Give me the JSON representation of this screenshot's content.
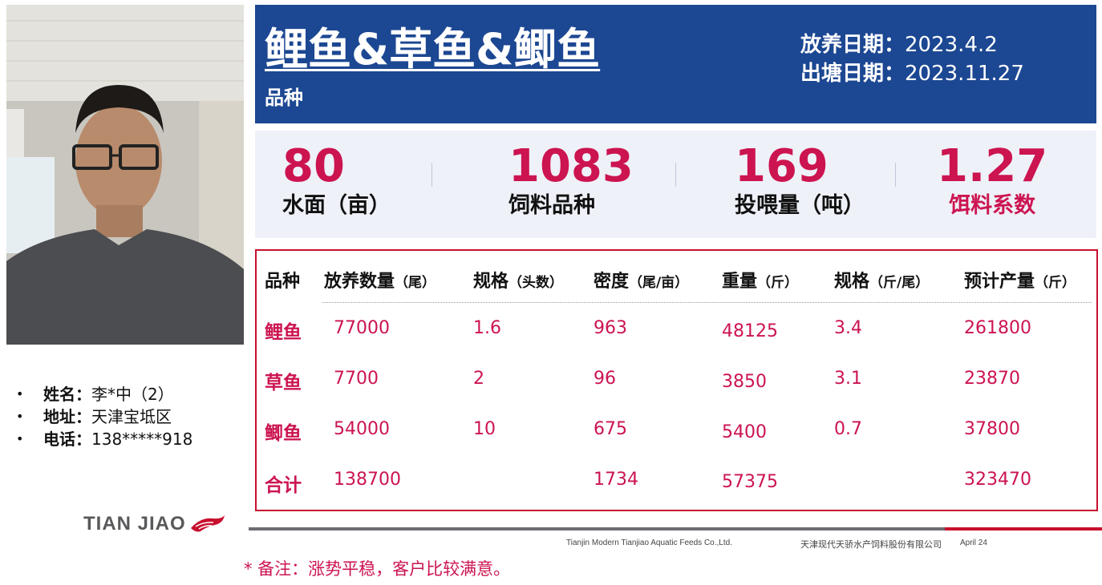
{
  "header": {
    "title": "鲤鱼&草鱼&鲫鱼",
    "subtitle": "品种",
    "release_date_label": "放养日期：",
    "release_date": "2023.4.2",
    "harvest_date_label": "出塘日期：",
    "harvest_date": "2023.11.27"
  },
  "stats": [
    {
      "value": "80",
      "label": "水面（亩）"
    },
    {
      "value": "1083",
      "label": "饲料品种"
    },
    {
      "value": "169",
      "label": "投喂量（吨）"
    },
    {
      "value": "1.27",
      "label": "饵料系数"
    }
  ],
  "table": {
    "headers": [
      {
        "main": "品种",
        "unit": ""
      },
      {
        "main": "放养数量",
        "unit": "（尾）"
      },
      {
        "main": "规格",
        "unit": "（头数）"
      },
      {
        "main": "密度",
        "unit": "（尾/亩）"
      },
      {
        "main": "重量",
        "unit": "（斤）"
      },
      {
        "main": "规格",
        "unit": "（斤/尾）"
      },
      {
        "main": "预计产量",
        "unit": "（斤）"
      }
    ],
    "rows": [
      {
        "name": "鲤鱼",
        "qty": "77000",
        "spec": "1.6",
        "density": "963",
        "weight": "48125",
        "spec2": "3.4",
        "yield": "261800"
      },
      {
        "name": "草鱼",
        "qty": "7700",
        "spec": "2",
        "density": "96",
        "weight": "3850",
        "spec2": "3.1",
        "yield": "23870"
      },
      {
        "name": "鲫鱼",
        "qty": "54000",
        "spec": "10",
        "density": "675",
        "weight": "5400",
        "spec2": "0.7",
        "yield": "37800"
      },
      {
        "name": "合计",
        "qty": "138700",
        "spec": "",
        "density": "1734",
        "weight": "57375",
        "spec2": "",
        "yield": "323470"
      }
    ]
  },
  "contact": {
    "name_label": "姓名：",
    "name": "李*中（2）",
    "address_label": "地址：",
    "address": "天津宝坻区",
    "phone_label": "电话：",
    "phone": "138*****918"
  },
  "logo_text": "TIAN JIAO",
  "footer": {
    "company_en": "Tianjin Modern Tianjiao Aquatic Feeds Co.,Ltd.",
    "company_cn": "天津现代天骄水产饲料股份有限公司",
    "date": "April 24"
  },
  "note": "* 备注：涨势平稳，客户比较满意。",
  "colors": {
    "banner": "#1c4792",
    "accent": "#cc1450",
    "stats_bg": "#eef1f8"
  }
}
